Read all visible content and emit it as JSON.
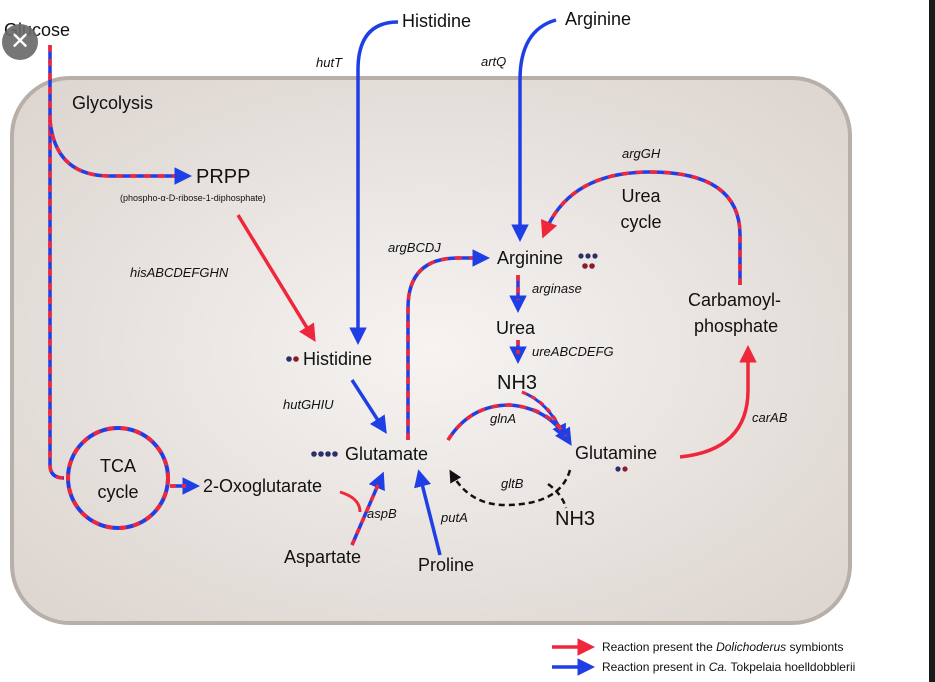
{
  "compartment_label": "Glycolysis",
  "close_glyph": "✕",
  "metabolites": {
    "glucose": "Glucose",
    "histidine_top": "Histidine",
    "arginine_top": "Arginine",
    "prpp": "PRPP",
    "prpp_full": "(phospho-α-D-ribose-1-diphosphate)",
    "histidine": "Histidine",
    "glutamate": "Glutamate",
    "arginine": "Arginine",
    "urea": "Urea",
    "nh3_a": "NH3",
    "nh3_b": "NH3",
    "glutamine": "Glutamine",
    "carbamoyl_1": "Carbamoyl-",
    "carbamoyl_2": "phosphate",
    "urea_cycle_1": "Urea",
    "urea_cycle_2": "cycle",
    "tca_1": "TCA",
    "tca_2": "cycle",
    "oxoglutarate": "2-Oxoglutarate",
    "aspartate": "Aspartate",
    "proline": "Proline"
  },
  "enzymes": {
    "hutT": "hutT",
    "artQ": "artQ",
    "argGH": "argGH",
    "hisABCDEFGHN": "hisABCDEFGHN",
    "argBCDJ": "argBCDJ",
    "arginase": "arginase",
    "ureABCDEFG": "ureABCDEFG",
    "hutGHIU": "hutGHIU",
    "glnA": "glnA",
    "carAB": "carAB",
    "gltB": "gltB",
    "aspB": "aspB",
    "putA": "putA"
  },
  "legend": {
    "red_prefix": "Reaction present the ",
    "red_italic": "Dolichoderus",
    "red_suffix": " symbionts",
    "blue_prefix": "Reaction present in ",
    "blue_italic": "Ca.",
    "blue_suffix": " Tokpelaia hoelldobblerii"
  },
  "colors": {
    "red": "#f0263a",
    "blue": "#1f3fe6",
    "black": "#111111",
    "navy_dot": "#2a2f6b",
    "maroon_dot": "#8a1c2c",
    "cell_fill": "#ece8e5",
    "cell_stroke": "#b9afa9"
  }
}
